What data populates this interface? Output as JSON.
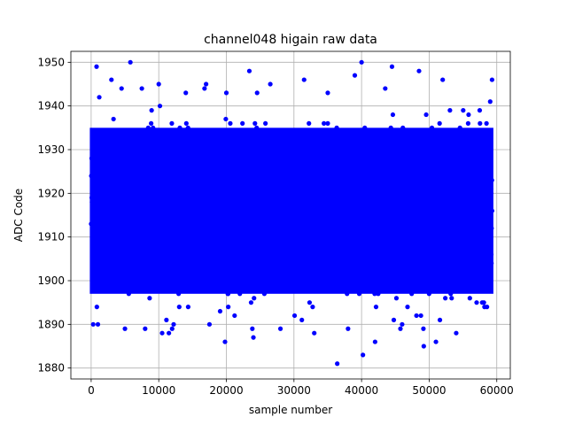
{
  "chart_data": {
    "type": "scatter",
    "title": "channel048 higain raw data",
    "xlabel": "sample number",
    "ylabel": "ADC Code",
    "xlim": [
      -3000,
      62000
    ],
    "ylim": [
      1877.5,
      1952.5
    ],
    "xticks": [
      0,
      10000,
      20000,
      30000,
      40000,
      50000,
      60000
    ],
    "yticks": [
      1880,
      1890,
      1900,
      1910,
      1920,
      1930,
      1940,
      1950
    ],
    "grid": true,
    "marker_color": "#0000ff",
    "series": [
      {
        "x_range": [
          0,
          59300
        ],
        "core_band": [
          1897,
          1935
        ],
        "points": [
          [
            800,
            1949
          ],
          [
            5800,
            1950
          ],
          [
            40000,
            1950
          ],
          [
            44500,
            1949
          ],
          [
            48500,
            1948
          ],
          [
            23400,
            1948
          ],
          [
            36400,
            1881
          ],
          [
            40200,
            1883
          ],
          [
            49200,
            1885
          ],
          [
            19800,
            1886
          ],
          [
            24000,
            1887
          ],
          [
            33000,
            1888
          ],
          [
            42000,
            1886
          ],
          [
            51000,
            1886
          ],
          [
            54000,
            1888
          ],
          [
            300,
            1890
          ],
          [
            1000,
            1890
          ],
          [
            5000,
            1889
          ],
          [
            10500,
            1888
          ],
          [
            11500,
            1888
          ],
          [
            12200,
            1890
          ],
          [
            17500,
            1890
          ],
          [
            28000,
            1889
          ],
          [
            38000,
            1889
          ],
          [
            46000,
            1890
          ],
          [
            59300,
            1946
          ],
          [
            52000,
            1946
          ],
          [
            39000,
            1947
          ],
          [
            31500,
            1946
          ],
          [
            26500,
            1945
          ],
          [
            17000,
            1945
          ],
          [
            10000,
            1945
          ],
          [
            3000,
            1946
          ],
          [
            7500,
            1944
          ],
          [
            14000,
            1943
          ],
          [
            1200,
            1942
          ],
          [
            4500,
            1944
          ],
          [
            20000,
            1943
          ],
          [
            35000,
            1943
          ],
          [
            43500,
            1944
          ]
        ]
      }
    ]
  }
}
